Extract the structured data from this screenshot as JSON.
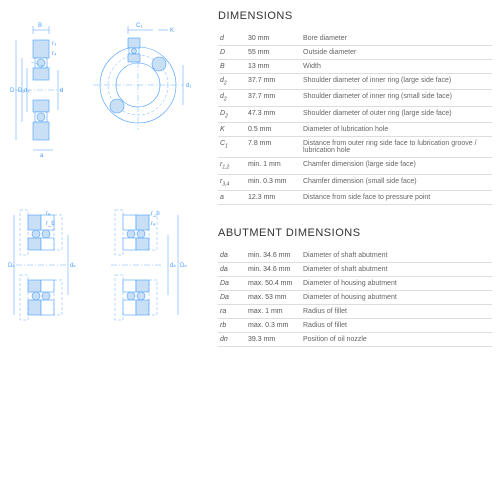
{
  "sections": {
    "dim": {
      "title": "DIMENSIONS",
      "rows": [
        {
          "s": "d",
          "v": "30 mm",
          "d": "Bore diameter"
        },
        {
          "s": "D",
          "v": "55 mm",
          "d": "Outside diameter"
        },
        {
          "s": "B",
          "v": "13 mm",
          "d": "Width"
        },
        {
          "s": "d2",
          "v": "37.7 mm",
          "d": "Shoulder diameter of inner ring (large side face)"
        },
        {
          "s": "d2",
          "v": "37.7 mm",
          "d": "Shoulder diameter of inner ring (small side face)"
        },
        {
          "s": "D2",
          "v": "47.3 mm",
          "d": "Shoulder diameter of outer ring (large side face)"
        },
        {
          "s": "K",
          "v": "0.5 mm",
          "d": "Diameter of lubrication hole"
        },
        {
          "s": "C1",
          "v": "7.8 mm",
          "d": "Distance from outer ring side face to lubrication groove / lubrication hole"
        },
        {
          "s": "r1,2",
          "v": "min. 1 mm",
          "d": "Chamfer dimension (large side face)"
        },
        {
          "s": "r3,4",
          "v": "min. 0.3 mm",
          "d": "Chamfer dimension (small side face)"
        },
        {
          "s": "a",
          "v": "12.3 mm",
          "d": "Distance from side face to pressure point"
        }
      ]
    },
    "abut": {
      "title": "ABUTMENT DIMENSIONS",
      "rows": [
        {
          "s": "da",
          "v": "min. 34.6 mm",
          "d": "Diameter of shaft abutment"
        },
        {
          "s": "da",
          "v": "min. 34.6 mm",
          "d": "Diameter of shaft abutment"
        },
        {
          "s": "Da",
          "v": "max. 50.4 mm",
          "d": "Diameter of housing abutment"
        },
        {
          "s": "Da",
          "v": "max. 53 mm",
          "d": "Diameter of housing abutment"
        },
        {
          "s": "ra",
          "v": "max. 1 mm",
          "d": "Radius of fillet"
        },
        {
          "s": "rb",
          "v": "max. 0.3 mm",
          "d": "Radius of fillet"
        },
        {
          "s": "dn",
          "v": "39.3 mm",
          "d": "Position of oil nozzle"
        }
      ]
    }
  }
}
